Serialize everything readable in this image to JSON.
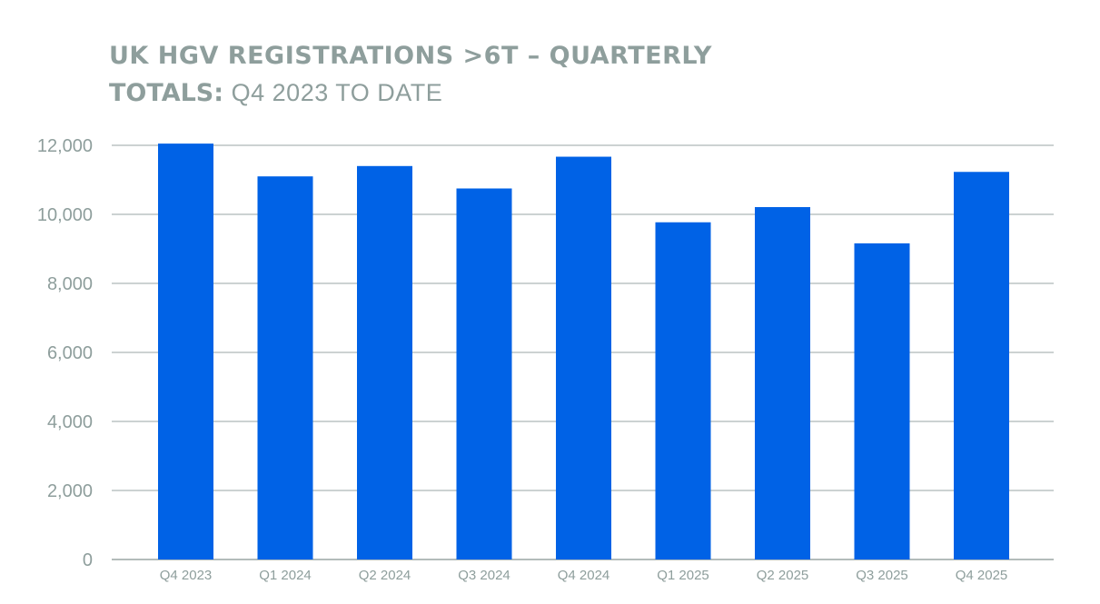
{
  "title": {
    "line1": "UK HGV REGISTRATIONS >6T – QUARTERLY",
    "line2_bold": "TOTALS:",
    "line2_light": "Q4 2023 TO DATE"
  },
  "colors": {
    "bar": "#0062e6",
    "grid": "#9aa5a4",
    "text": "#8e9e9c"
  },
  "chart_data": {
    "type": "bar",
    "title": "UK HGV REGISTRATIONS >6T – QUARTERLY TOTALS: Q4 2023 TO DATE",
    "xlabel": "",
    "ylabel": "",
    "categories": [
      "Q4 2023",
      "Q1 2024",
      "Q2 2024",
      "Q3 2024",
      "Q4 2024",
      "Q1 2025",
      "Q2 2025",
      "Q3 2025",
      "Q4 2025"
    ],
    "values": [
      12050,
      11100,
      11400,
      10750,
      11670,
      9770,
      10210,
      9160,
      11230
    ],
    "ylim": [
      0,
      12000
    ],
    "yticks": [
      0,
      2000,
      4000,
      6000,
      8000,
      10000,
      12000
    ],
    "ytick_labels": [
      "0",
      "2,000",
      "4,000",
      "6,000",
      "8,000",
      "10,000",
      "12,000"
    ],
    "grid": true,
    "legend": "none"
  }
}
